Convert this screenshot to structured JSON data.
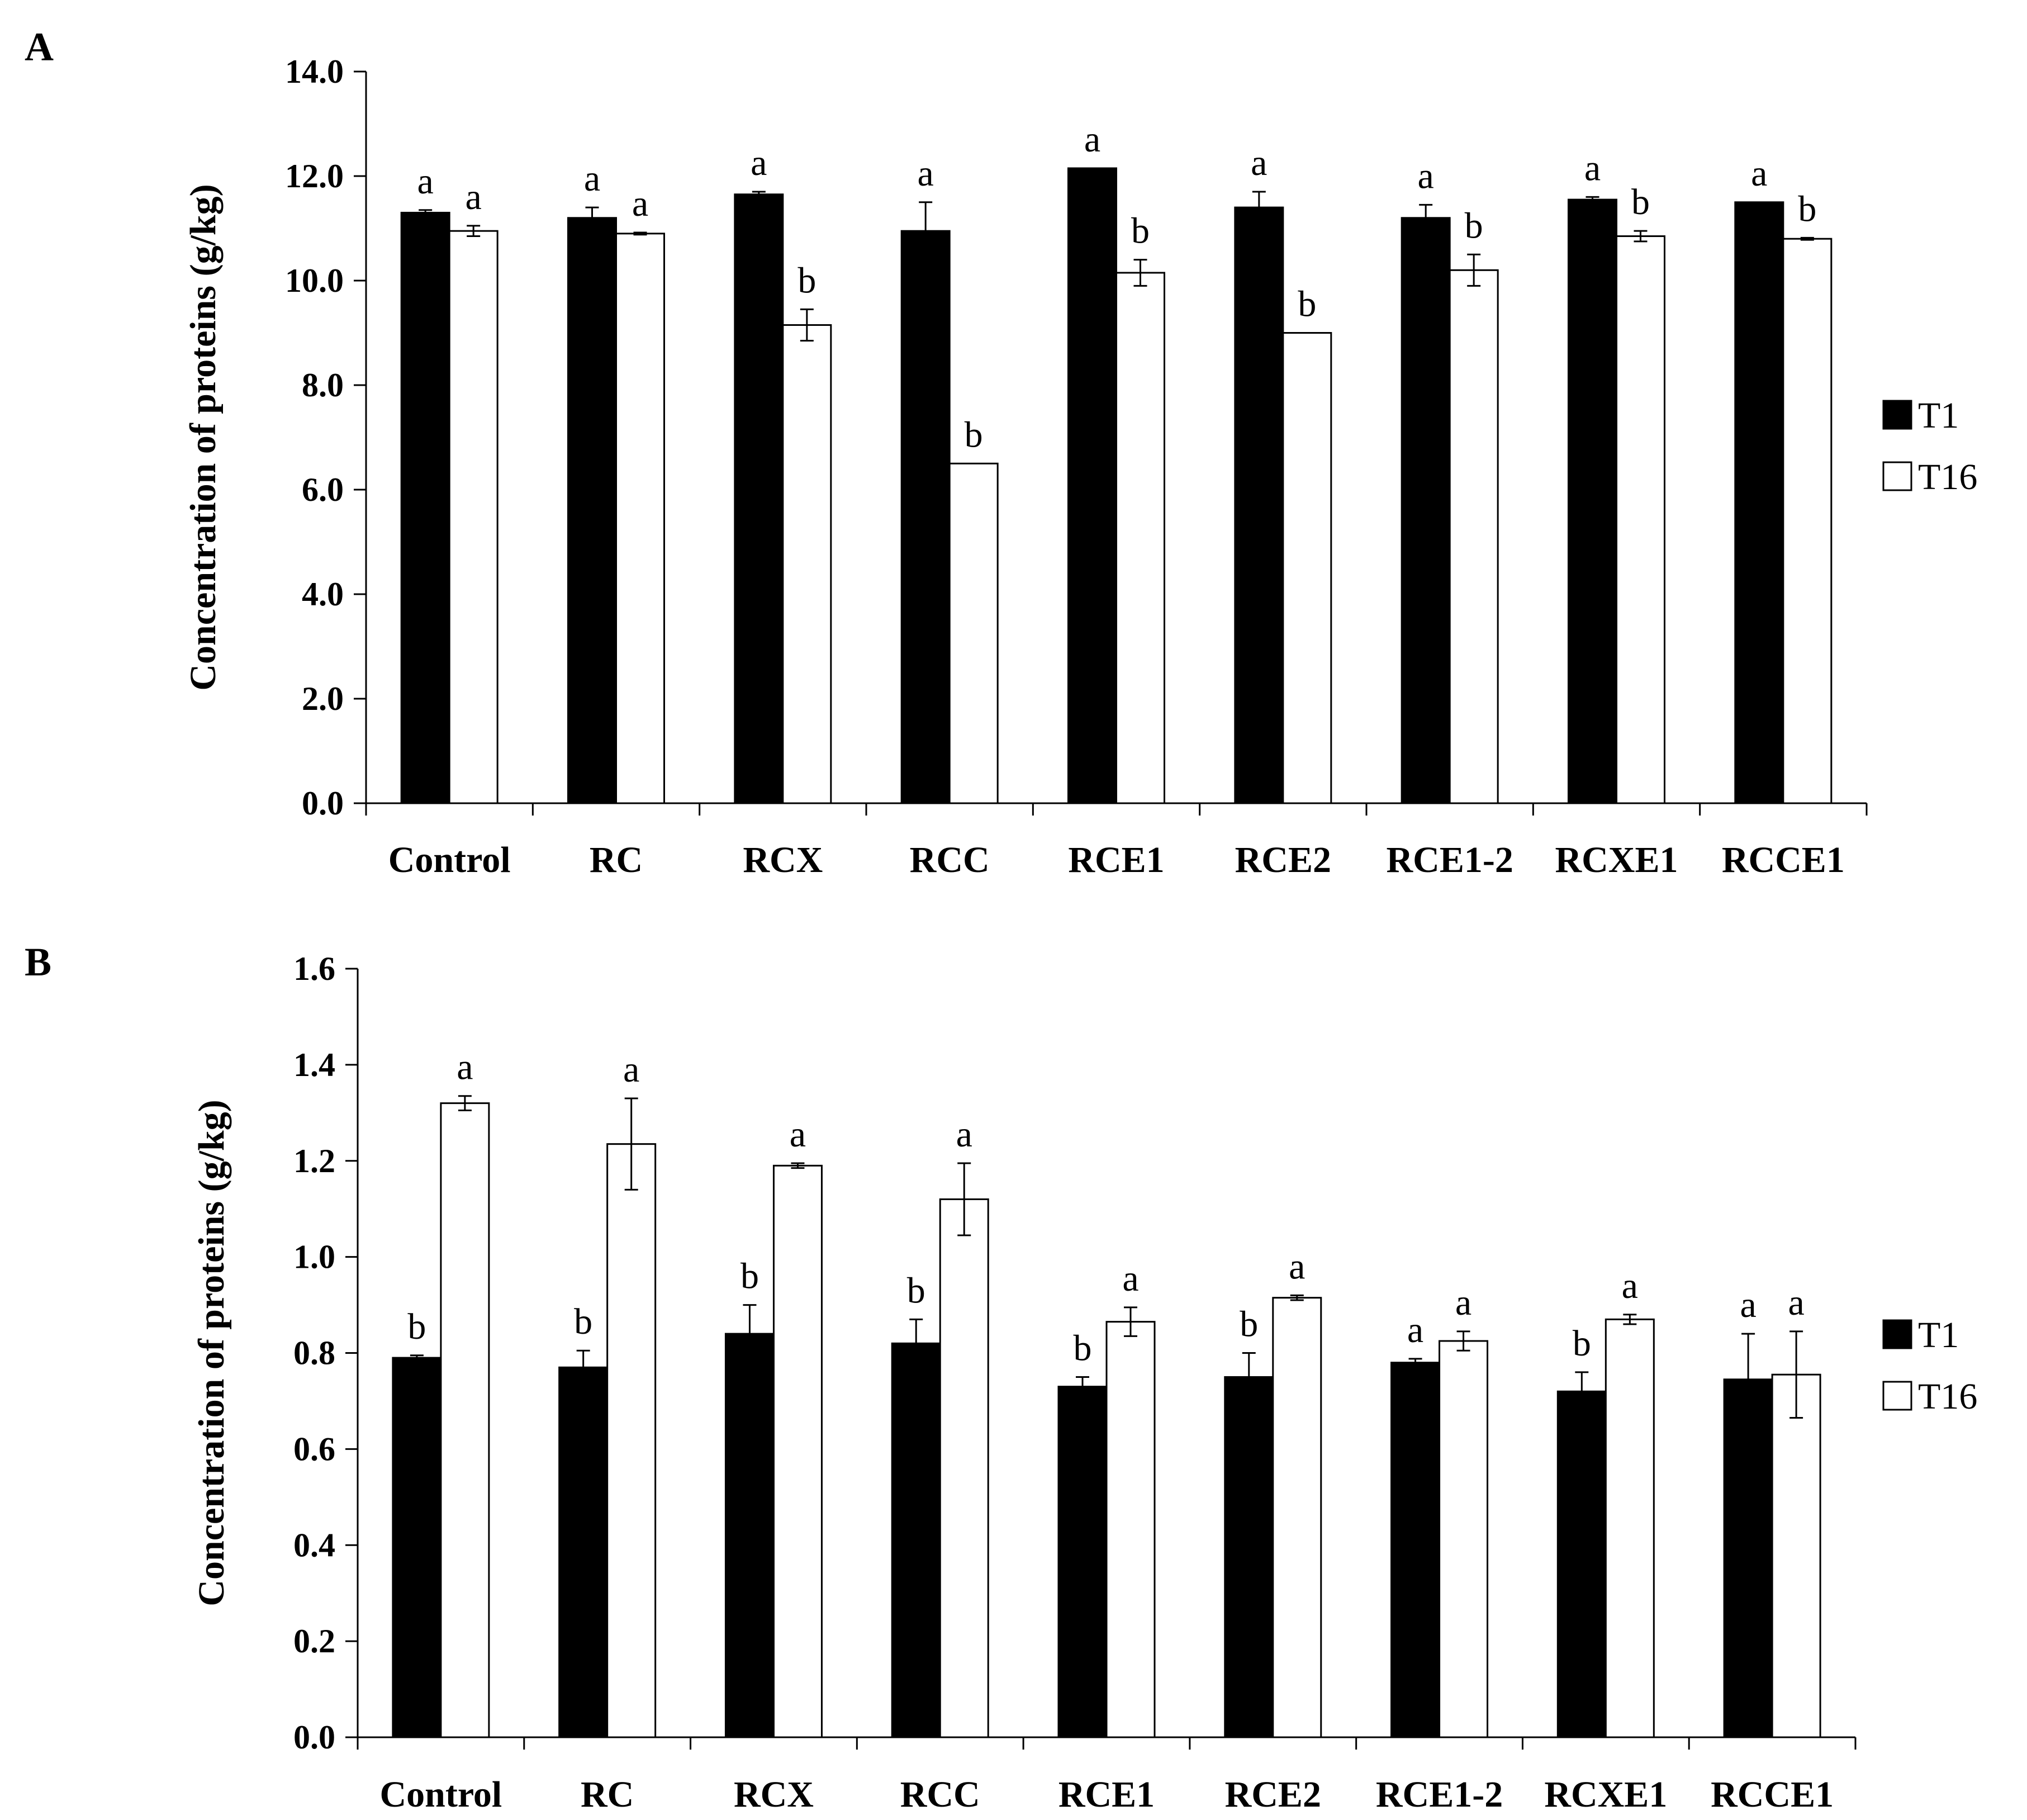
{
  "chart_data": [
    {
      "panel": "A",
      "type": "bar",
      "ylabel": "Concentration of proteins (g/kg)",
      "ylim": [
        0,
        14
      ],
      "ytick_step": 2,
      "ytick_labels": [
        "0.0",
        "2.0",
        "4.0",
        "6.0",
        "8.0",
        "10.0",
        "12.0",
        "14.0"
      ],
      "categories": [
        "Control",
        "RC",
        "RCX",
        "RCC",
        "RCE1",
        "RCE2",
        "RCE1-2",
        "RCXE1",
        "RCCE1"
      ],
      "series": [
        {
          "name": "T1",
          "fill": "#000000",
          "values": [
            11.3,
            11.2,
            11.65,
            10.95,
            12.15,
            11.4,
            11.2,
            11.55,
            11.5
          ],
          "errors": [
            0.05,
            0.2,
            0.05,
            0.55,
            0.0,
            0.3,
            0.25,
            0.05,
            0.0
          ],
          "letters": [
            "a",
            "a",
            "a",
            "a",
            "a",
            "a",
            "a",
            "a",
            "a"
          ]
        },
        {
          "name": "T16",
          "fill": "#ffffff",
          "values": [
            10.95,
            10.9,
            9.15,
            6.5,
            10.15,
            9.0,
            10.2,
            10.85,
            10.8
          ],
          "errors": [
            0.1,
            0.02,
            0.3,
            0.0,
            0.25,
            0.0,
            0.3,
            0.1,
            0.02
          ],
          "letters": [
            "a",
            "a",
            "b",
            "b",
            "b",
            "b",
            "b",
            "b",
            "b"
          ]
        }
      ],
      "legend": "right"
    },
    {
      "panel": "B",
      "type": "bar",
      "ylabel": "Concentration of proteins (g/kg)",
      "ylim": [
        0,
        1.6
      ],
      "ytick_step": 0.2,
      "ytick_labels": [
        "0.0",
        "0.2",
        "0.4",
        "0.6",
        "0.8",
        "1.0",
        "1.2",
        "1.4",
        "1.6"
      ],
      "categories": [
        "Control",
        "RC",
        "RCX",
        "RCC",
        "RCE1",
        "RCE2",
        "RCE1-2",
        "RCXE1",
        "RCCE1"
      ],
      "series": [
        {
          "name": "T1",
          "fill": "#000000",
          "values": [
            0.79,
            0.77,
            0.84,
            0.82,
            0.73,
            0.75,
            0.78,
            0.72,
            0.745
          ],
          "errors": [
            0.005,
            0.035,
            0.06,
            0.05,
            0.02,
            0.05,
            0.008,
            0.04,
            0.095
          ],
          "letters": [
            "b",
            "b",
            "b",
            "b",
            "b",
            "b",
            "a",
            "b",
            "a"
          ]
        },
        {
          "name": "T16",
          "fill": "#ffffff",
          "values": [
            1.32,
            1.235,
            1.19,
            1.12,
            0.865,
            0.915,
            0.825,
            0.87,
            0.755
          ],
          "errors": [
            0.015,
            0.095,
            0.005,
            0.075,
            0.03,
            0.005,
            0.02,
            0.01,
            0.09
          ],
          "letters": [
            "a",
            "a",
            "a",
            "a",
            "a",
            "a",
            "a",
            "a",
            "a"
          ]
        }
      ],
      "legend": "right"
    }
  ]
}
